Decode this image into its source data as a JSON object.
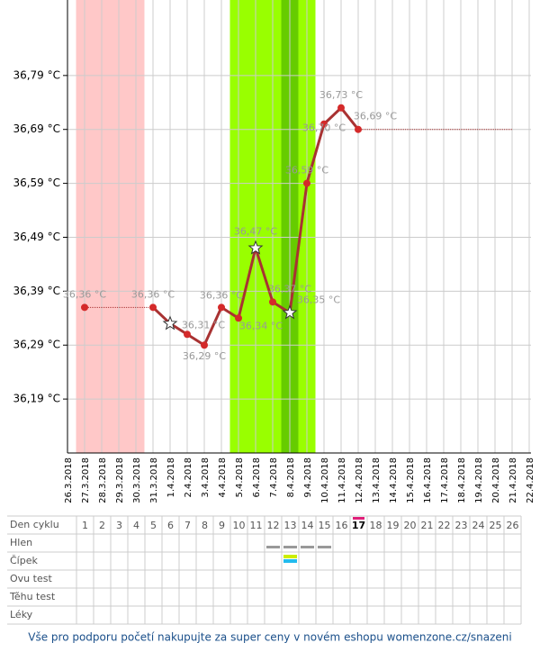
{
  "chart_data": {
    "type": "line",
    "categories": [
      "26.3.2018",
      "27.3.2018",
      "28.3.2018",
      "29.3.2018",
      "30.3.2018",
      "31.3.2018",
      "1.4.2018",
      "2.4.2018",
      "3.4.2018",
      "4.4.2018",
      "5.4.2018",
      "6.4.2018",
      "7.4.2018",
      "8.4.2018",
      "9.4.2018",
      "10.4.2018",
      "11.4.2018",
      "12.4.2018",
      "13.4.2018",
      "14.4.2018",
      "15.4.2018",
      "16.4.2018",
      "17.4.2018",
      "18.4.2018",
      "19.4.2018",
      "20.4.2018",
      "21.4.2018",
      "22.4.2018"
    ],
    "series": [
      {
        "color": "#a83232",
        "values": [
          null,
          36.36,
          null,
          null,
          null,
          36.36,
          36.33,
          36.31,
          36.29,
          36.36,
          36.34,
          36.47,
          36.37,
          36.35,
          36.59,
          36.7,
          36.73,
          36.69,
          null,
          null,
          null,
          null,
          null,
          null,
          null,
          null,
          null,
          null
        ],
        "value_labels": [
          null,
          "36,36 °C",
          null,
          null,
          null,
          "36,36 °C",
          null,
          "36,31 °C",
          "36,29 °C",
          "36,36 °C",
          "36,34 °C",
          "36,47 °C",
          "36,37 °C",
          "36,35 °C",
          "36,59 °C",
          "36,70 °C",
          "36,73 °C",
          "36,69 °C",
          null,
          null,
          null,
          null,
          null,
          null,
          null,
          null,
          null,
          null
        ],
        "markers": [
          null,
          "dot",
          null,
          null,
          null,
          "dot",
          "star",
          "dot",
          "dot",
          "dot",
          "dot",
          "star",
          "dot",
          "star",
          "dot",
          "dot",
          "dot",
          "dot",
          null,
          null,
          null,
          null,
          null,
          null,
          null,
          null,
          null,
          null
        ]
      }
    ],
    "ylim": [
      36.09,
      36.93
    ],
    "yticks": [
      {
        "value": 36.19,
        "label": "36,19 °C"
      },
      {
        "value": 36.29,
        "label": "36,29 °C"
      },
      {
        "value": 36.39,
        "label": "36,39 °C"
      },
      {
        "value": 36.49,
        "label": "36,49 °C"
      },
      {
        "value": 36.59,
        "label": "36,59 °C"
      },
      {
        "value": 36.69,
        "label": "36,69 °C"
      },
      {
        "value": 36.79,
        "label": "36,79 °C"
      }
    ],
    "grid": true,
    "bands": [
      {
        "from": "27.3.2018",
        "to": "30.3.2018",
        "color": "#ffc8c8"
      },
      {
        "from": "5.4.2018",
        "to": "9.4.2018",
        "color": "#99ff00"
      },
      {
        "from": "8.4.2018",
        "to": "8.4.2018",
        "color": "#66cc00"
      }
    ]
  },
  "table": {
    "header": "Den cyklu",
    "days": [
      1,
      2,
      3,
      4,
      5,
      6,
      7,
      8,
      9,
      10,
      11,
      12,
      13,
      14,
      15,
      16,
      17,
      18,
      19,
      20,
      21,
      22,
      23,
      24,
      25,
      26
    ],
    "current_day": 17,
    "rows": [
      "Hlen",
      "Čípek",
      "Ovu test",
      "Těhu test",
      "Léky"
    ],
    "hlen_days": [
      12,
      13,
      14,
      15
    ],
    "cipek_days": [
      13
    ]
  },
  "footer": "Vše pro podporu početí nakupujte za super ceny v novém eshopu womenzone.cz/snazeni"
}
